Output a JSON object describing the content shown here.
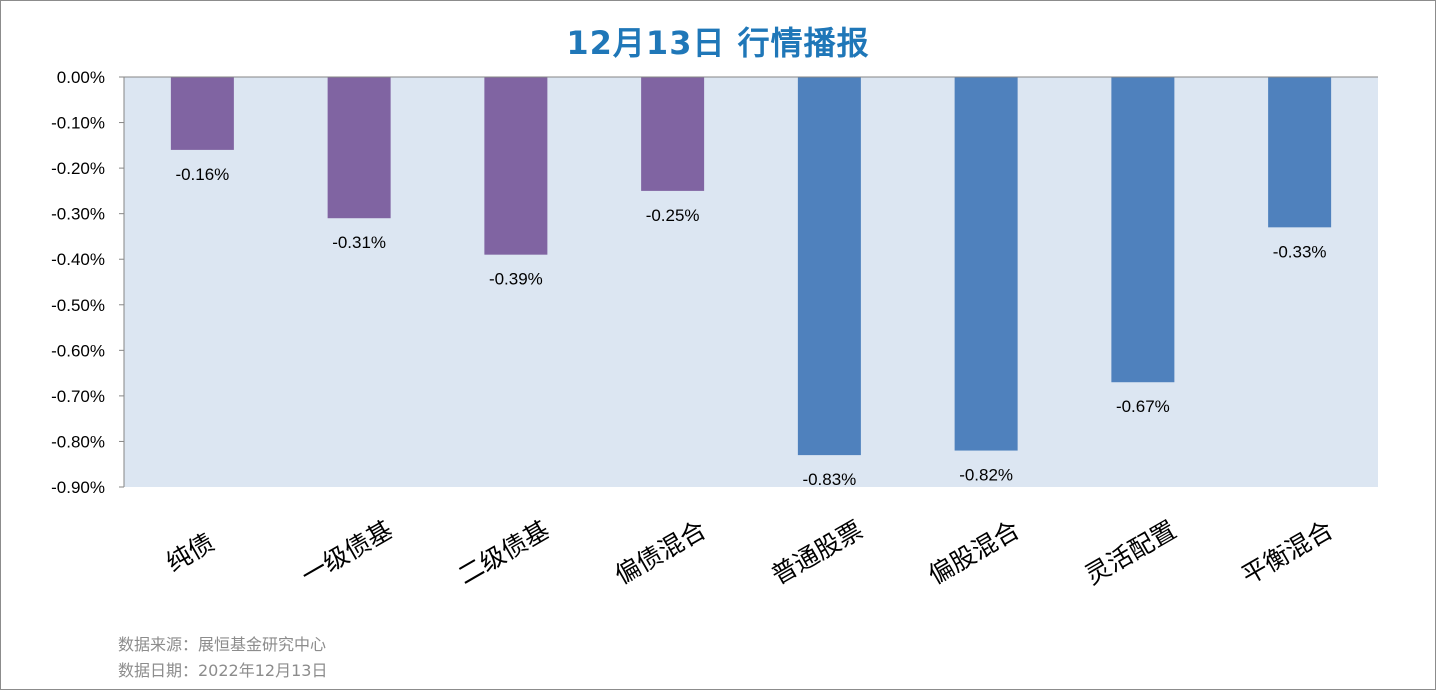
{
  "title": "12月13日  行情播报",
  "footer": {
    "source": "数据来源：展恒基金研究中心",
    "date": "数据日期：2022年12月13日"
  },
  "colors": {
    "plot_bg": "#dce6f2",
    "bond": "#8064a2",
    "equity": "#4f81bd",
    "title": "#1f77b8"
  },
  "chart_data": {
    "type": "bar",
    "title": "12月13日  行情播报",
    "categories": [
      "纯债",
      "一级债基",
      "二级债基",
      "偏债混合",
      "普通股票",
      "偏股混合",
      "灵活配置",
      "平衡混合"
    ],
    "values": [
      -0.16,
      -0.31,
      -0.39,
      -0.25,
      -0.83,
      -0.82,
      -0.67,
      -0.33
    ],
    "data_labels": [
      "-0.16%",
      "-0.31%",
      "-0.39%",
      "-0.25%",
      "-0.83%",
      "-0.82%",
      "-0.67%",
      "-0.33%"
    ],
    "bar_colors": [
      "#8064a2",
      "#8064a2",
      "#8064a2",
      "#8064a2",
      "#4f81bd",
      "#4f81bd",
      "#4f81bd",
      "#4f81bd"
    ],
    "ylim": [
      -0.9,
      0.0
    ],
    "yticks": [
      0.0,
      -0.1,
      -0.2,
      -0.3,
      -0.4,
      -0.5,
      -0.6,
      -0.7,
      -0.8,
      -0.9
    ],
    "ytick_labels": [
      "0.00%",
      "-0.10%",
      "-0.20%",
      "-0.30%",
      "-0.40%",
      "-0.50%",
      "-0.60%",
      "-0.70%",
      "-0.80%",
      "-0.90%"
    ],
    "xlabel": "",
    "ylabel": "",
    "grid": false,
    "legend": "none"
  }
}
